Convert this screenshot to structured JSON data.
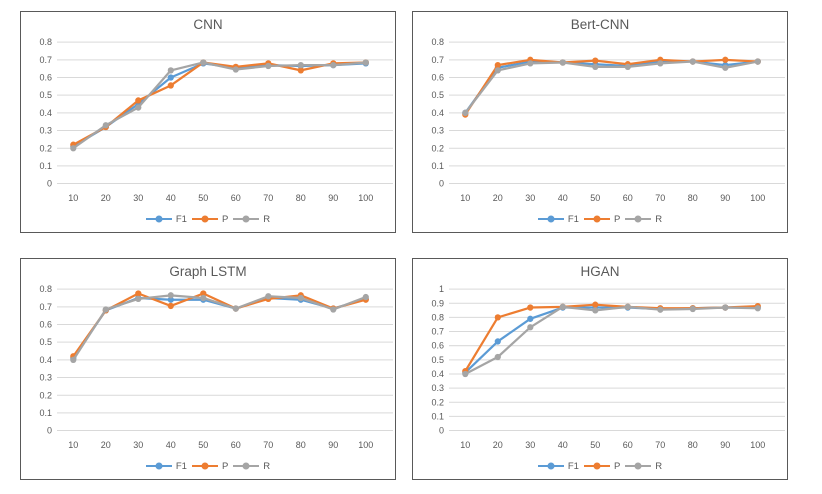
{
  "colors": {
    "series_f1": "#5B9BD5",
    "series_p": "#ED7D31",
    "series_r": "#A5A5A5",
    "gridline": "#D9D9D9",
    "axis_text": "#595959",
    "panel_border": "#595959",
    "background": "#FFFFFF"
  },
  "chart_data": [
    {
      "type": "line",
      "title": "CNN",
      "xlabel": "",
      "ylabel": "",
      "categories": [
        10,
        20,
        30,
        40,
        50,
        60,
        70,
        80,
        90,
        100
      ],
      "ylim": [
        0,
        0.8
      ],
      "yticks": [
        0,
        0.1,
        0.2,
        0.3,
        0.4,
        0.5,
        0.6,
        0.7,
        0.8
      ],
      "grid": true,
      "legend_position": "bottom",
      "series": [
        {
          "name": "F1",
          "color": "#5B9BD5",
          "values": [
            0.21,
            0.32,
            0.45,
            0.6,
            0.68,
            0.655,
            0.67,
            0.665,
            0.67,
            0.68
          ]
        },
        {
          "name": "P",
          "color": "#ED7D31",
          "values": [
            0.22,
            0.32,
            0.47,
            0.555,
            0.685,
            0.66,
            0.68,
            0.64,
            0.68,
            0.685
          ]
        },
        {
          "name": "R",
          "color": "#A5A5A5",
          "values": [
            0.2,
            0.33,
            0.43,
            0.64,
            0.685,
            0.645,
            0.665,
            0.67,
            0.67,
            0.685
          ]
        }
      ]
    },
    {
      "type": "line",
      "title": "Bert-CNN",
      "xlabel": "",
      "ylabel": "",
      "categories": [
        10,
        20,
        30,
        40,
        50,
        60,
        70,
        80,
        90,
        100
      ],
      "ylim": [
        0,
        0.8
      ],
      "yticks": [
        0,
        0.1,
        0.2,
        0.3,
        0.4,
        0.5,
        0.6,
        0.7,
        0.8
      ],
      "grid": true,
      "legend_position": "bottom",
      "series": [
        {
          "name": "F1",
          "color": "#5B9BD5",
          "values": [
            0.4,
            0.655,
            0.69,
            0.685,
            0.675,
            0.665,
            0.69,
            0.69,
            0.67,
            0.69
          ]
        },
        {
          "name": "P",
          "color": "#ED7D31",
          "values": [
            0.39,
            0.67,
            0.7,
            0.685,
            0.695,
            0.675,
            0.7,
            0.69,
            0.7,
            0.69
          ]
        },
        {
          "name": "R",
          "color": "#A5A5A5",
          "values": [
            0.4,
            0.64,
            0.68,
            0.685,
            0.66,
            0.66,
            0.68,
            0.69,
            0.655,
            0.69
          ]
        }
      ]
    },
    {
      "type": "line",
      "title": "Graph LSTM",
      "xlabel": "",
      "ylabel": "",
      "categories": [
        10,
        20,
        30,
        40,
        50,
        60,
        70,
        80,
        90,
        100
      ],
      "ylim": [
        0,
        0.8
      ],
      "yticks": [
        0,
        0.1,
        0.2,
        0.3,
        0.4,
        0.5,
        0.6,
        0.7,
        0.8
      ],
      "grid": true,
      "legend_position": "bottom",
      "series": [
        {
          "name": "F1",
          "color": "#5B9BD5",
          "values": [
            0.41,
            0.68,
            0.75,
            0.74,
            0.74,
            0.69,
            0.75,
            0.74,
            0.69,
            0.745
          ]
        },
        {
          "name": "P",
          "color": "#ED7D31",
          "values": [
            0.42,
            0.68,
            0.775,
            0.705,
            0.775,
            0.69,
            0.745,
            0.765,
            0.69,
            0.74
          ]
        },
        {
          "name": "R",
          "color": "#A5A5A5",
          "values": [
            0.4,
            0.685,
            0.745,
            0.765,
            0.75,
            0.69,
            0.76,
            0.75,
            0.685,
            0.755
          ]
        }
      ]
    },
    {
      "type": "line",
      "title": "HGAN",
      "xlabel": "",
      "ylabel": "",
      "categories": [
        10,
        20,
        30,
        40,
        50,
        60,
        70,
        80,
        90,
        100
      ],
      "ylim": [
        0,
        1
      ],
      "yticks": [
        0,
        0.1,
        0.2,
        0.3,
        0.4,
        0.5,
        0.6,
        0.7,
        0.8,
        0.9,
        1
      ],
      "grid": true,
      "legend_position": "bottom",
      "series": [
        {
          "name": "F1",
          "color": "#5B9BD5",
          "values": [
            0.41,
            0.63,
            0.79,
            0.87,
            0.87,
            0.87,
            0.86,
            0.865,
            0.87,
            0.87
          ]
        },
        {
          "name": "P",
          "color": "#ED7D31",
          "values": [
            0.42,
            0.8,
            0.87,
            0.875,
            0.89,
            0.875,
            0.865,
            0.865,
            0.87,
            0.88
          ]
        },
        {
          "name": "R",
          "color": "#A5A5A5",
          "values": [
            0.4,
            0.52,
            0.73,
            0.875,
            0.85,
            0.875,
            0.855,
            0.86,
            0.87,
            0.865
          ]
        }
      ]
    }
  ]
}
